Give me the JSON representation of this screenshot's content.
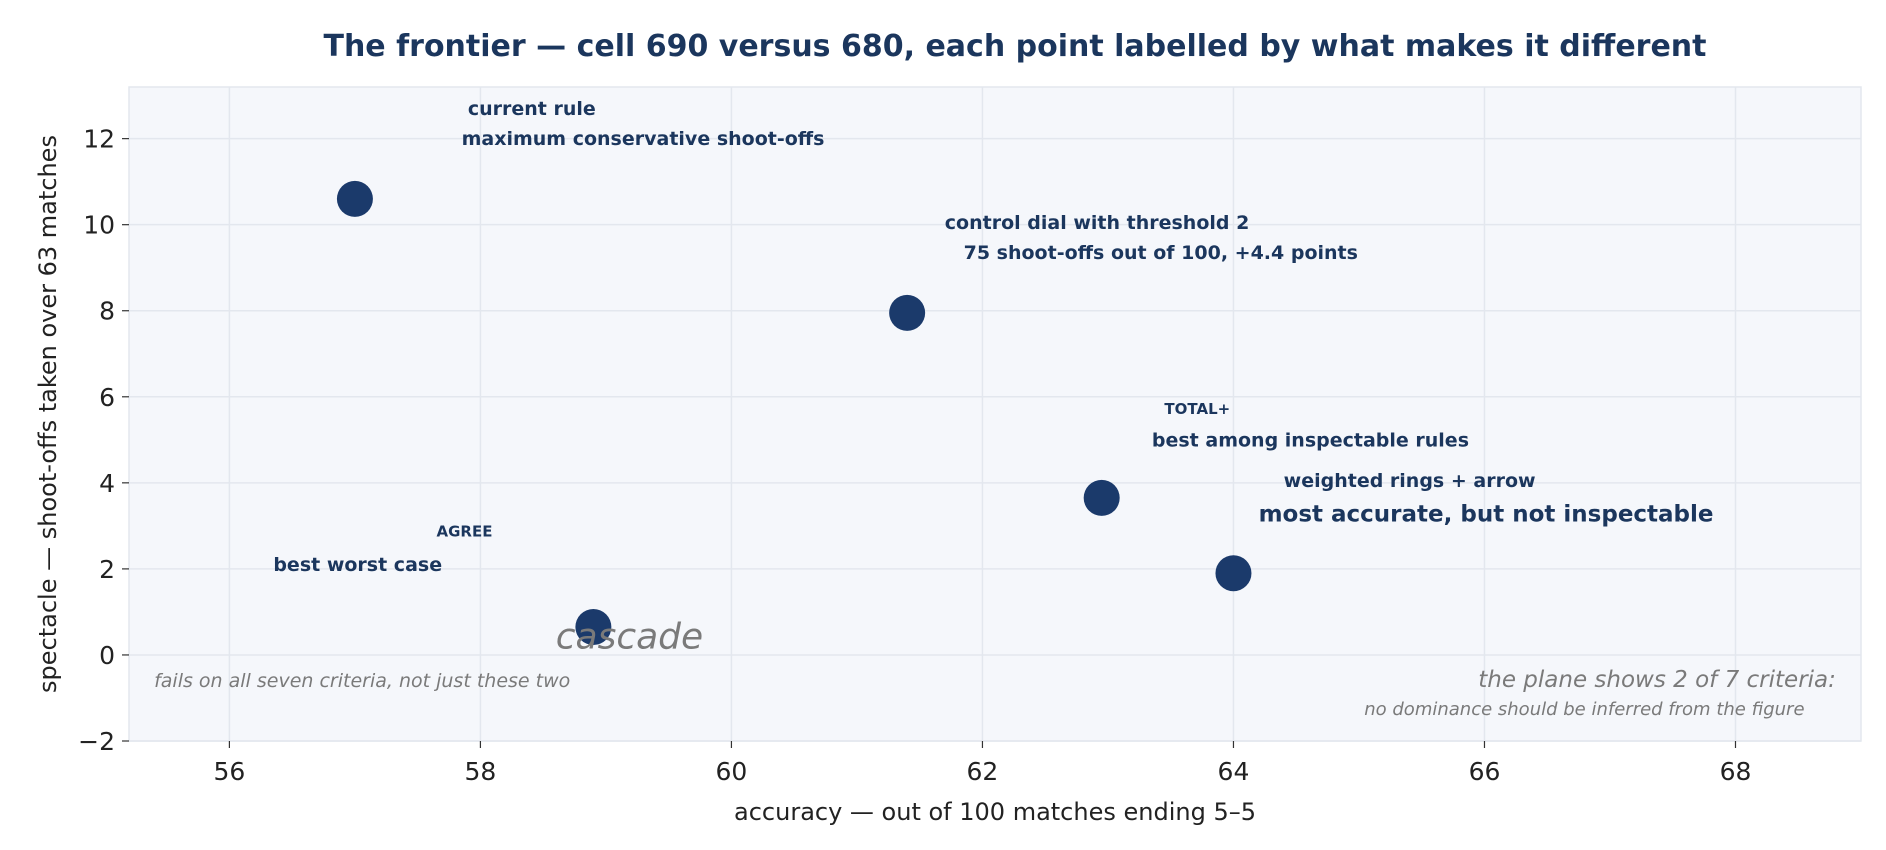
{
  "chart_data": {
    "type": "scatter",
    "title": "The frontier — cell 690 versus 680, each point labelled by what makes it different",
    "xlabel": "accuracy — out of 100 matches ending 5–5",
    "ylabel": "spectacle — shoot-offs taken over 63 matches",
    "xlim": [
      55.2,
      69.0
    ],
    "ylim": [
      -2,
      13.2
    ],
    "xticks": [
      56,
      58,
      60,
      62,
      64,
      66,
      68
    ],
    "yticks": [
      -2,
      0,
      2,
      4,
      6,
      8,
      10,
      12
    ],
    "grid": true,
    "colors": {
      "point": "#1b3a6b",
      "text": "#1b365d",
      "note": "#7a7a7a",
      "plot_bg": "#f5f7fb",
      "grid": "#e3e7ee"
    },
    "points": [
      {
        "x": 57.0,
        "y": 10.6
      },
      {
        "x": 61.4,
        "y": 7.95
      },
      {
        "x": 62.95,
        "y": 3.65
      },
      {
        "x": 64.0,
        "y": 1.9
      },
      {
        "x": 58.9,
        "y": 0.65
      }
    ],
    "annotations": [
      {
        "text": "current rule",
        "x": 57.9,
        "y": 12.55,
        "size": 19,
        "anchor": "start",
        "style": "bold"
      },
      {
        "text": "maximum conservative shoot-offs",
        "x": 57.85,
        "y": 11.85,
        "size": 19,
        "anchor": "start",
        "style": "bold"
      },
      {
        "text": "control dial with threshold 2",
        "x": 61.7,
        "y": 9.9,
        "size": 19,
        "anchor": "start",
        "style": "bold"
      },
      {
        "text": "75 shoot-offs out of 100, +4.4 points",
        "x": 61.85,
        "y": 9.2,
        "size": 19,
        "anchor": "start",
        "style": "bold"
      },
      {
        "text": "TOTAL+",
        "x": 63.45,
        "y": 5.6,
        "size": 15,
        "anchor": "start",
        "style": "bold"
      },
      {
        "text": "best among inspectable rules",
        "x": 63.35,
        "y": 4.85,
        "size": 19,
        "anchor": "start",
        "style": "bold"
      },
      {
        "text": "weighted rings + arrow",
        "x": 64.4,
        "y": 3.9,
        "size": 19,
        "anchor": "start",
        "style": "bold"
      },
      {
        "text": "most accurate, but not inspectable",
        "x": 64.2,
        "y": 3.1,
        "size": 23,
        "anchor": "start",
        "style": "bold"
      },
      {
        "text": "AGREE",
        "x": 57.65,
        "y": 2.75,
        "size": 15,
        "anchor": "start",
        "style": "bold"
      },
      {
        "text": "best worst case",
        "x": 56.35,
        "y": 1.95,
        "size": 19,
        "anchor": "start",
        "style": "bold"
      },
      {
        "text": "cascade",
        "x": 58.6,
        "y": 0.15,
        "size": 36,
        "anchor": "start",
        "style": "italic"
      },
      {
        "text": "fails on all seven criteria, not just these two",
        "x": 55.4,
        "y": -0.75,
        "size": 19,
        "anchor": "start",
        "style": "italic"
      },
      {
        "text": "the plane shows 2 of 7 criteria:",
        "x": 68.8,
        "y": -0.75,
        "size": 23,
        "anchor": "end",
        "style": "italic"
      },
      {
        "text": "no dominance should be inferred from the figure",
        "x": 68.55,
        "y": -1.4,
        "size": 18,
        "anchor": "end",
        "style": "italic"
      }
    ]
  }
}
